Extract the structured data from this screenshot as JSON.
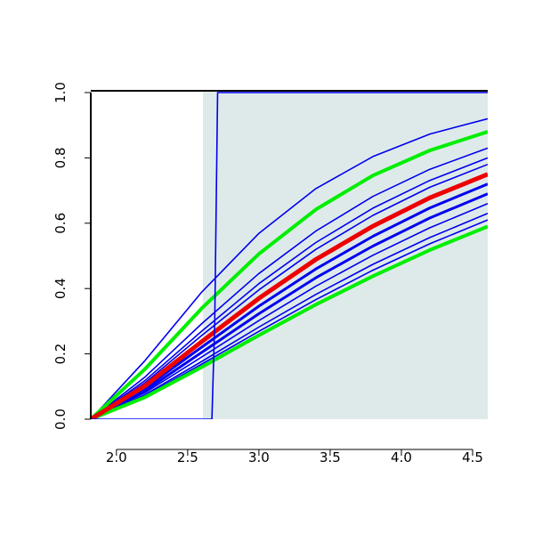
{
  "chart_data": {
    "type": "line",
    "xlim": [
      1.82,
      4.606
    ],
    "ylim": [
      0,
      1
    ],
    "xticks": [
      {
        "value": 2,
        "label": "2.0"
      },
      {
        "value": 2.5,
        "label": "2.5"
      },
      {
        "value": 3,
        "label": "3.0"
      },
      {
        "value": 3.5,
        "label": "3.5"
      },
      {
        "value": 4,
        "label": "4.0"
      },
      {
        "value": 4.5,
        "label": "4.5"
      }
    ],
    "yticks": [
      {
        "value": 0,
        "label": "0.0"
      },
      {
        "value": 0.2,
        "label": "0.2"
      },
      {
        "value": 0.4,
        "label": "0.4"
      },
      {
        "value": 0.6,
        "label": "0.6"
      },
      {
        "value": 0.8,
        "label": "0.8"
      },
      {
        "value": 1,
        "label": "1.0"
      }
    ],
    "shaded_xrange": [
      2.607,
      4.606
    ],
    "shade_color": "#deeaea",
    "x": [
      1.82,
      2.2,
      2.6,
      3.0,
      3.4,
      3.8,
      4.2,
      4.606
    ],
    "series": [
      {
        "color": "#0000ee",
        "line_width": 1.6,
        "values": [
          0,
          0.179,
          0.39,
          0.569,
          0.706,
          0.804,
          0.873,
          0.92
        ]
      },
      {
        "color": "#0000ee",
        "line_width": 1.6,
        "values": [
          0,
          0.129,
          0.293,
          0.446,
          0.576,
          0.682,
          0.765,
          0.83
        ]
      },
      {
        "color": "#0000ee",
        "line_width": 1.6,
        "values": [
          0,
          0.118,
          0.27,
          0.415,
          0.541,
          0.646,
          0.731,
          0.8
        ]
      },
      {
        "color": "#0000ee",
        "line_width": 1.6,
        "values": [
          0,
          0.111,
          0.257,
          0.396,
          0.52,
          0.624,
          0.71,
          0.78
        ]
      },
      {
        "color": "#0000ee",
        "line_width": 3,
        "values": [
          0,
          0.095,
          0.221,
          0.346,
          0.46,
          0.56,
          0.647,
          0.72
        ]
      },
      {
        "color": "#0000ee",
        "line_width": 3,
        "values": [
          0,
          0.087,
          0.205,
          0.323,
          0.433,
          0.53,
          0.616,
          0.69
        ]
      },
      {
        "color": "#0000ee",
        "line_width": 1.6,
        "values": [
          0,
          0.081,
          0.191,
          0.302,
          0.407,
          0.502,
          0.586,
          0.66
        ]
      },
      {
        "color": "#0000ee",
        "line_width": 1.6,
        "values": [
          0,
          0.075,
          0.177,
          0.282,
          0.382,
          0.474,
          0.556,
          0.63
        ]
      },
      {
        "color": "#0000ee",
        "line_width": 1.6,
        "values": [
          0,
          0.071,
          0.169,
          0.269,
          0.366,
          0.456,
          0.537,
          0.61
        ]
      },
      {
        "color": "#00ee00",
        "line_width": 4,
        "values": [
          0,
          0.153,
          0.34,
          0.506,
          0.642,
          0.746,
          0.823,
          0.88
        ]
      },
      {
        "color": "#00ee00",
        "line_width": 4,
        "values": [
          0,
          0.067,
          0.16,
          0.257,
          0.351,
          0.438,
          0.518,
          0.59
        ]
      },
      {
        "color": "#ee0000",
        "line_width": 5,
        "values": [
          0,
          0.102,
          0.238,
          0.37,
          0.489,
          0.591,
          0.678,
          0.75
        ]
      },
      {
        "color": "#0000ee",
        "line_width": 1.6,
        "x": [
          1.82,
          2.67,
          2.69,
          2.71,
          4.606
        ],
        "values": [
          0,
          0,
          0.3,
          1,
          1
        ]
      }
    ]
  }
}
